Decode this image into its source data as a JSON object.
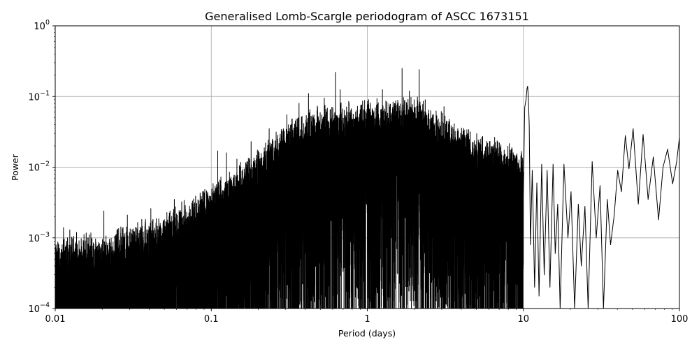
{
  "chart_data": {
    "type": "line",
    "title": "Generalised Lomb-Scargle periodogram of ASCC 1673151",
    "xlabel": "Period (days)",
    "ylabel": "Power",
    "xscale": "log",
    "yscale": "log",
    "xlim": [
      0.01,
      100
    ],
    "ylim": [
      0.0001,
      1
    ],
    "grid": true,
    "legend": "none",
    "x_ticks": [
      {
        "value": 0.01,
        "label": "0.01"
      },
      {
        "value": 0.1,
        "label": "0.1"
      },
      {
        "value": 1,
        "label": "1"
      },
      {
        "value": 10,
        "label": "10"
      },
      {
        "value": 100,
        "label": "100"
      }
    ],
    "y_ticks": [
      {
        "value": 0.0001,
        "base": "10",
        "exp": "−4"
      },
      {
        "value": 0.001,
        "base": "10",
        "exp": "−3"
      },
      {
        "value": 0.01,
        "base": "10",
        "exp": "−2"
      },
      {
        "value": 0.1,
        "base": "10",
        "exp": "−1"
      },
      {
        "value": 1,
        "base": "10",
        "exp": "0"
      }
    ],
    "series": [
      {
        "color": "#000000",
        "noise_envelope": [
          [
            0.01,
            0.0007
          ],
          [
            0.02,
            0.0008
          ],
          [
            0.05,
            0.0015
          ],
          [
            0.1,
            0.004
          ],
          [
            0.2,
            0.012
          ],
          [
            0.3,
            0.03
          ],
          [
            0.5,
            0.05
          ],
          [
            1,
            0.06
          ],
          [
            2,
            0.07
          ],
          [
            3,
            0.04
          ],
          [
            5,
            0.02
          ],
          [
            8,
            0.015
          ],
          [
            10,
            0.012
          ]
        ],
        "peaks": [
          [
            0.0113,
            0.0014
          ],
          [
            0.0124,
            0.0013
          ],
          [
            0.0137,
            0.0012
          ],
          [
            0.0165,
            0.0011
          ],
          [
            0.0205,
            0.0024
          ],
          [
            0.029,
            0.0021
          ],
          [
            0.041,
            0.0026
          ],
          [
            0.058,
            0.0035
          ],
          [
            0.067,
            0.0034
          ],
          [
            0.088,
            0.0045
          ],
          [
            0.11,
            0.017
          ],
          [
            0.125,
            0.016
          ],
          [
            0.146,
            0.013
          ],
          [
            0.18,
            0.023
          ],
          [
            0.2,
            0.017
          ],
          [
            0.235,
            0.035
          ],
          [
            0.265,
            0.025
          ],
          [
            0.305,
            0.055
          ],
          [
            0.365,
            0.08
          ],
          [
            0.42,
            0.11
          ],
          [
            0.48,
            0.07
          ],
          [
            0.53,
            0.095
          ],
          [
            0.625,
            0.22
          ],
          [
            0.67,
            0.125
          ],
          [
            0.76,
            0.085
          ],
          [
            0.9,
            0.065
          ],
          [
            1.05,
            0.06
          ],
          [
            1.25,
            0.125
          ],
          [
            1.4,
            0.075
          ],
          [
            1.67,
            0.25
          ],
          [
            1.86,
            0.12
          ],
          [
            2.15,
            0.24
          ],
          [
            2.35,
            0.09
          ],
          [
            2.65,
            0.055
          ],
          [
            3.1,
            0.072
          ],
          [
            3.8,
            0.035
          ],
          [
            4.4,
            0.03
          ],
          [
            5.3,
            0.025
          ],
          [
            6.2,
            0.018
          ],
          [
            7.8,
            0.014
          ],
          [
            8.6,
            0.016
          ]
        ],
        "late_points": [
          [
            10.0,
            0.004
          ],
          [
            10.2,
            0.07
          ],
          [
            10.4,
            0.09
          ],
          [
            10.55,
            0.13
          ],
          [
            10.65,
            0.14
          ],
          [
            10.75,
            0.1
          ],
          [
            10.9,
            0.04
          ],
          [
            11.1,
            0.0008
          ],
          [
            11.4,
            0.009
          ],
          [
            11.8,
            0.0002
          ],
          [
            12.2,
            0.006
          ],
          [
            12.6,
            0.00015
          ],
          [
            13.1,
            0.011
          ],
          [
            13.6,
            0.0003
          ],
          [
            14.2,
            0.009
          ],
          [
            14.8,
            0.0002
          ],
          [
            15.5,
            0.011
          ],
          [
            16.0,
            0.0006
          ],
          [
            16.6,
            0.003
          ],
          [
            17.2,
            0.0001
          ],
          [
            18.2,
            0.011
          ],
          [
            19.3,
            0.001
          ],
          [
            20.2,
            0.0045
          ],
          [
            21.3,
            0.0001
          ],
          [
            22.5,
            0.003
          ],
          [
            23.5,
            0.0004
          ],
          [
            24.8,
            0.0028
          ],
          [
            26.0,
            0.0001
          ],
          [
            27.6,
            0.012
          ],
          [
            29.3,
            0.001
          ],
          [
            31.0,
            0.0055
          ],
          [
            32.6,
            0.0001
          ],
          [
            34.5,
            0.0035
          ],
          [
            36.2,
            0.0008
          ],
          [
            38.2,
            0.0021
          ],
          [
            40.2,
            0.009
          ],
          [
            42.5,
            0.0045
          ],
          [
            45.0,
            0.028
          ],
          [
            47.5,
            0.0095
          ],
          [
            50.5,
            0.035
          ],
          [
            54.5,
            0.003
          ],
          [
            58.5,
            0.029
          ],
          [
            63.0,
            0.0035
          ],
          [
            68.0,
            0.014
          ],
          [
            73.5,
            0.0018
          ],
          [
            78.5,
            0.01
          ],
          [
            84.0,
            0.018
          ],
          [
            90.5,
            0.0058
          ],
          [
            96.0,
            0.012
          ],
          [
            100.0,
            0.026
          ]
        ]
      }
    ]
  }
}
